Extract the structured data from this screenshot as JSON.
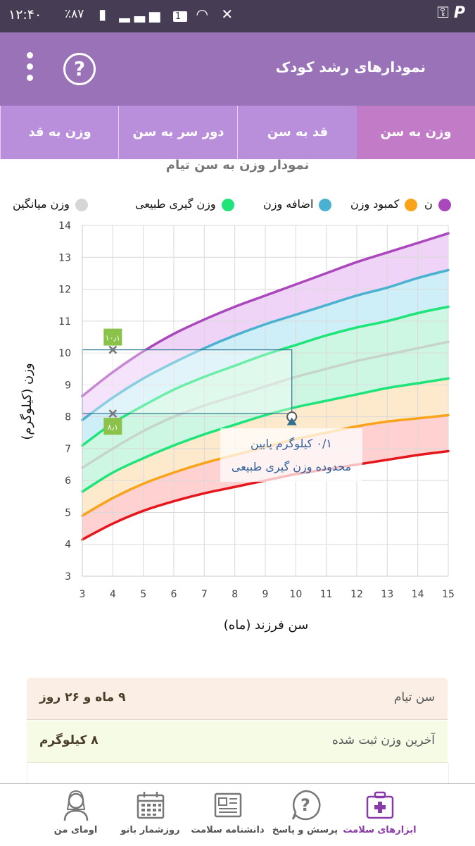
{
  "status_bar": {
    "time": "۱۲:۴۰",
    "battery": "٪۸۷",
    "sim_badge": "1"
  },
  "app_bar": {
    "title": "نمودارهای رشد کودک",
    "help_label": "?"
  },
  "tabs": [
    {
      "label": "وزن به سن",
      "active": true
    },
    {
      "label": "قد به سن",
      "active": false
    },
    {
      "label": "دور سر به سن",
      "active": false
    },
    {
      "label": "وزن به قد",
      "active": false
    }
  ],
  "legend": [
    {
      "label": "ن",
      "color": "#ab47bc"
    },
    {
      "label": "کمبود وزن",
      "color": "#f9a31a"
    },
    {
      "label": "اضافه وزن",
      "color": "#4ab2d0"
    },
    {
      "label": "وزن گیری طبیعی",
      "color": "#1ee47a"
    },
    {
      "label": "وزن میانگین",
      "color": "#d6d6d6"
    }
  ],
  "chart_data": {
    "type": "area",
    "title": "نمودار وزن به سن تیام",
    "xlabel": "سن فرزند (ماه)",
    "ylabel": "وزن (کیلوگرم)",
    "xlim": [
      3,
      15
    ],
    "ylim": [
      3,
      14
    ],
    "x_ticks": [
      "3",
      "4",
      "5",
      "6",
      "7",
      "8",
      "9",
      "10",
      "11",
      "12",
      "13",
      "14",
      "15"
    ],
    "y_ticks": [
      "3",
      "4",
      "5",
      "6",
      "7",
      "8",
      "9",
      "10",
      "11",
      "12",
      "13",
      "14"
    ],
    "grid": true,
    "x": [
      3,
      4,
      5,
      6,
      7,
      8,
      9,
      10,
      11,
      12,
      13,
      14,
      15
    ],
    "series": [
      {
        "values": [
          8.65,
          9.4,
          10.05,
          10.6,
          11.05,
          11.45,
          11.8,
          12.15,
          12.5,
          12.85,
          13.15,
          13.45,
          13.75
        ],
        "color": "#ab47bc"
      },
      {
        "values": [
          7.9,
          8.6,
          9.2,
          9.7,
          10.15,
          10.55,
          10.9,
          11.2,
          11.5,
          11.8,
          12.05,
          12.35,
          12.6
        ],
        "color": "#4ab2d0"
      },
      {
        "values": [
          7.1,
          7.8,
          8.35,
          8.85,
          9.25,
          9.6,
          9.95,
          10.25,
          10.55,
          10.8,
          11.0,
          11.25,
          11.45
        ],
        "color": "#1ee47a"
      },
      {
        "values": [
          6.4,
          7.0,
          7.55,
          8.0,
          8.35,
          8.65,
          8.95,
          9.25,
          9.5,
          9.75,
          9.95,
          10.15,
          10.35
        ],
        "color": "#c7d4cc"
      },
      {
        "values": [
          5.65,
          6.25,
          6.7,
          7.1,
          7.45,
          7.75,
          8.05,
          8.3,
          8.5,
          8.7,
          8.9,
          9.05,
          9.2
        ],
        "color": "#1ee47a"
      },
      {
        "values": [
          4.9,
          5.45,
          5.9,
          6.25,
          6.55,
          6.8,
          7.05,
          7.3,
          7.5,
          7.7,
          7.85,
          7.95,
          8.05
        ],
        "color": "#f9a31a"
      },
      {
        "values": [
          4.15,
          4.65,
          5.05,
          5.35,
          5.6,
          5.8,
          6.0,
          6.2,
          6.35,
          6.5,
          6.65,
          6.8,
          6.92
        ],
        "color": "#e6171c"
      }
    ],
    "fills": [
      {
        "color": "#eccdf6"
      },
      {
        "color": "#c7ecf7"
      },
      {
        "color": "#c6f6de"
      },
      {
        "color": "#c6f6de"
      },
      {
        "color": "#fde6c4"
      },
      {
        "color": "#ffc9c9"
      }
    ],
    "child_point": {
      "x": 9.87,
      "y": 8.0
    },
    "range_box": {
      "x": [
        3,
        9.87
      ],
      "y": [
        8.1,
        10.1
      ]
    },
    "range_labels": [
      {
        "x": 4,
        "y": 10.1,
        "text": "۱۰٫۱"
      },
      {
        "x": 4,
        "y": 8.1,
        "text": "۸٫۱"
      }
    ],
    "annotation": {
      "line1": "۰/۱ کیلوگرم پایین",
      "line2": "محدوده وزن گیری طبیعی"
    }
  },
  "info_cards": [
    {
      "label": "سن تیام",
      "value": "۹ ماه و ۲۶ روز"
    },
    {
      "label": "آخرین وزن ثبت شده",
      "value": "۸ کیلوگرم"
    }
  ],
  "bottom_nav": [
    {
      "label": "ابزارهای سلامت",
      "icon": "health-kit-icon",
      "active": true
    },
    {
      "label": "پرسش و پاسخ",
      "icon": "question-bubble-icon",
      "active": false
    },
    {
      "label": "دانشنامه سلامت",
      "icon": "newspaper-icon",
      "active": false
    },
    {
      "label": "روزشمار بانو",
      "icon": "calendar-icon",
      "active": false
    },
    {
      "label": "اومای من",
      "icon": "profile-icon",
      "active": false
    }
  ]
}
